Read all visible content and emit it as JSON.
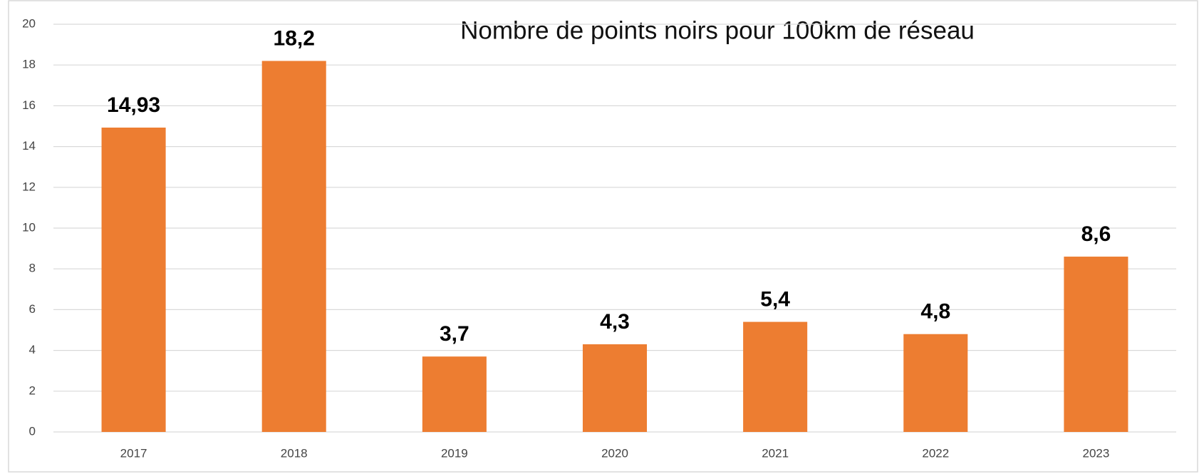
{
  "chart_data": {
    "type": "bar",
    "title": "Nombre de points noirs pour 100km de réseau",
    "categories": [
      "2017",
      "2018",
      "2019",
      "2020",
      "2021",
      "2022",
      "2023"
    ],
    "values": [
      14.93,
      18.2,
      3.7,
      4.3,
      5.4,
      4.8,
      8.6
    ],
    "value_labels": [
      "14,93",
      "18,2",
      "3,7",
      "4,3",
      "5,4",
      "4,8",
      "8,6"
    ],
    "color": "#ed7d31",
    "ylim": [
      0,
      20
    ],
    "yticks": [
      0,
      2,
      4,
      6,
      8,
      10,
      12,
      14,
      16,
      18,
      20
    ],
    "grid": true
  }
}
